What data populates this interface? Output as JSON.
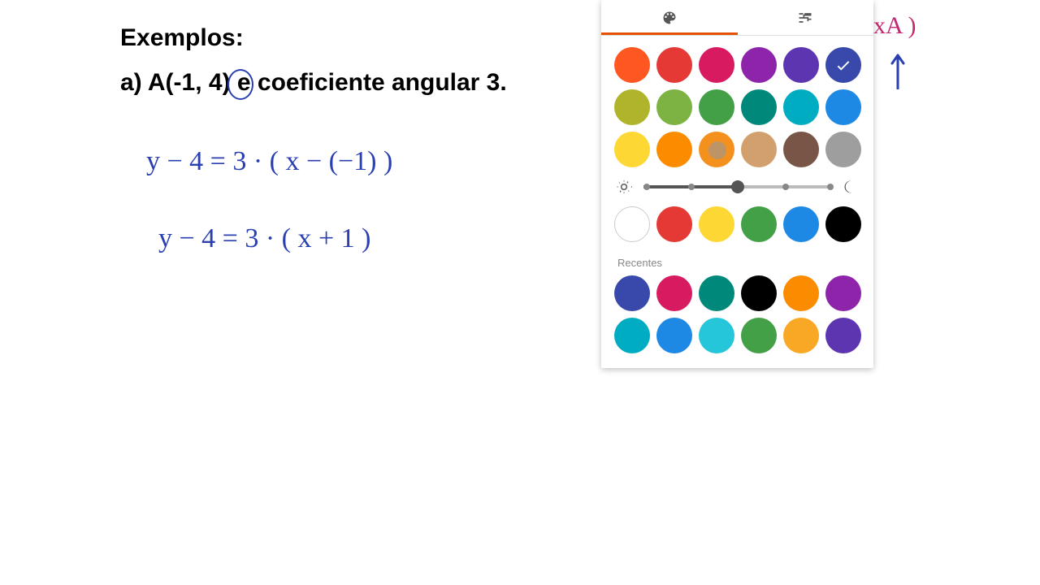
{
  "text": {
    "title": "Exemplos:",
    "subtitle": "a) A(-1, 4) e coeficiente angular 3.",
    "eq1": "y − 4 = 3 · ( x − (−1) )",
    "eq2": "y − 4 = 3 · ( x + 1 )",
    "pink": "xA )",
    "recentes_label": "Recentes"
  },
  "panel": {
    "active_tab": 0,
    "swatches": [
      {
        "color": "#ff5722",
        "selected": false
      },
      {
        "color": "#e53935",
        "selected": false
      },
      {
        "color": "#d81b60",
        "selected": false
      },
      {
        "color": "#8e24aa",
        "selected": false
      },
      {
        "color": "#5e35b1",
        "selected": false
      },
      {
        "color": "#3949ab",
        "selected": true
      },
      {
        "color": "#afb42b",
        "selected": false
      },
      {
        "color": "#7cb342",
        "selected": false
      },
      {
        "color": "#43a047",
        "selected": false
      },
      {
        "color": "#00897b",
        "selected": false
      },
      {
        "color": "#00acc1",
        "selected": false
      },
      {
        "color": "#1e88e5",
        "selected": false
      },
      {
        "color": "#fdd835",
        "selected": false
      },
      {
        "color": "#fb8c00",
        "selected": false
      },
      {
        "color": "#f4911e",
        "selected": false,
        "cursor": true
      },
      {
        "color": "#d2a06e",
        "selected": false
      },
      {
        "color": "#795548",
        "selected": false
      },
      {
        "color": "#9e9e9e",
        "selected": false
      }
    ],
    "brightness": {
      "value": 0.5
    },
    "favorites": [
      {
        "color": "#ffffff",
        "bordered": true
      },
      {
        "color": "#e53935"
      },
      {
        "color": "#fdd835"
      },
      {
        "color": "#43a047"
      },
      {
        "color": "#1e88e5"
      },
      {
        "color": "#000000"
      }
    ],
    "recents": [
      {
        "color": "#3949ab"
      },
      {
        "color": "#d81b60"
      },
      {
        "color": "#00897b"
      },
      {
        "color": "#000000"
      },
      {
        "color": "#fb8c00"
      },
      {
        "color": "#8e24aa"
      },
      {
        "color": "#00acc1"
      },
      {
        "color": "#1e88e5"
      },
      {
        "color": "#26c6da"
      },
      {
        "color": "#43a047"
      },
      {
        "color": "#f9a825"
      },
      {
        "color": "#5e35b1"
      }
    ]
  },
  "styling": {
    "panel_shadow": "0 2px 8px rgba(0,0,0,0.25)",
    "accent": "#e65100",
    "handwritten_color": "#2a3fb0",
    "pink_color": "#c4266f"
  }
}
